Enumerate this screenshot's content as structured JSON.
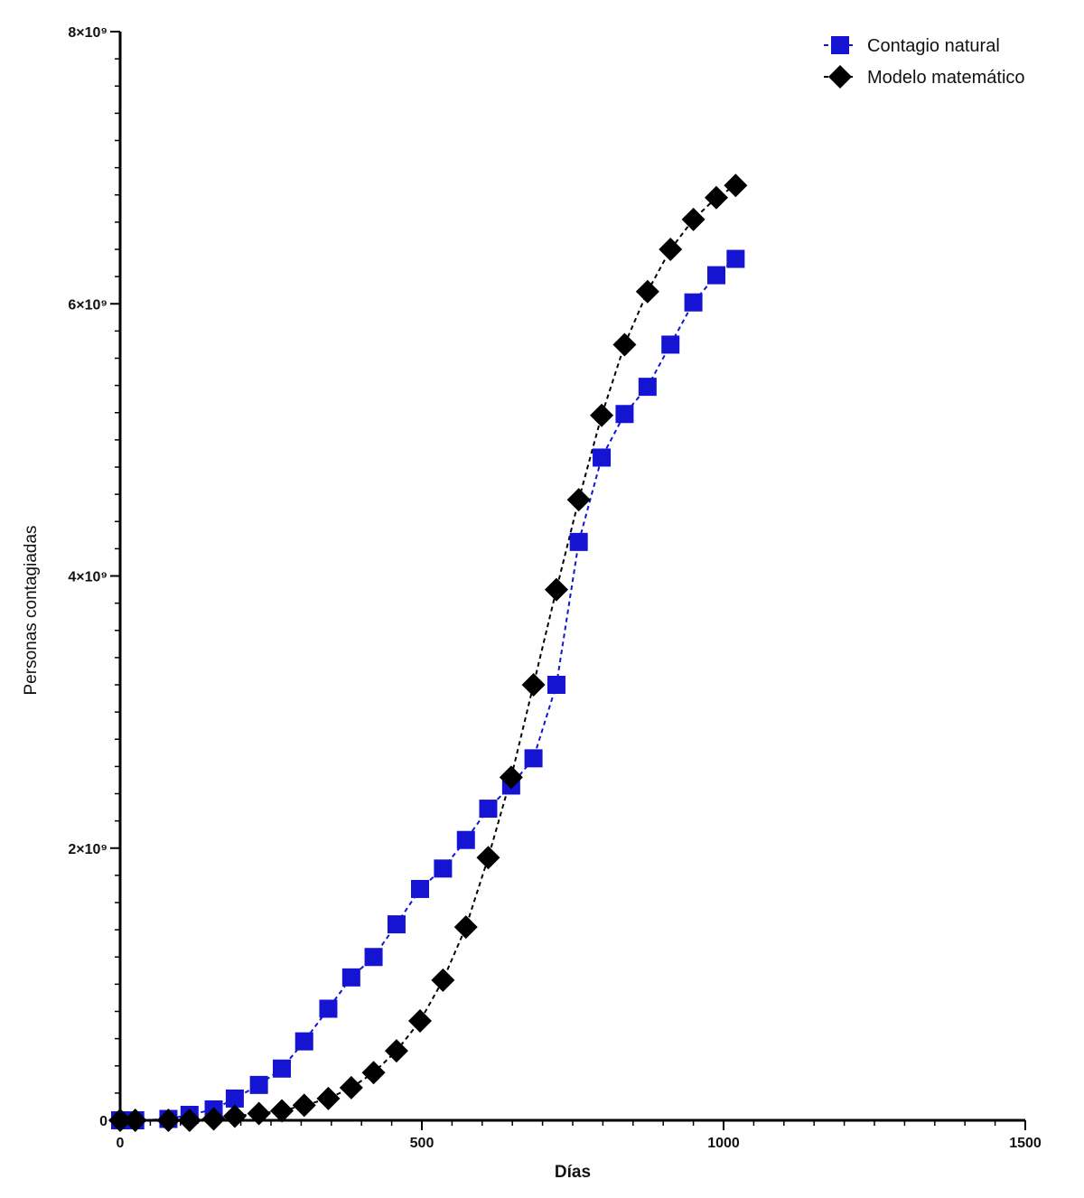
{
  "chart_data": {
    "type": "line",
    "title": "",
    "xlabel": "Días",
    "ylabel": "Personas contagiadas",
    "xlim": [
      0,
      1500
    ],
    "ylim": [
      0,
      8000000000
    ],
    "x_ticks": [
      0,
      500,
      1000,
      1500
    ],
    "x_tick_labels": [
      "0",
      "500",
      "1000",
      "1500"
    ],
    "y_ticks": [
      0,
      2000000000,
      4000000000,
      6000000000,
      8000000000
    ],
    "y_tick_labels": [
      "0",
      "2×10⁹",
      "4×10⁹",
      "6×10⁹",
      "8×10⁹"
    ],
    "grid": false,
    "legend_position": "top-right",
    "series": [
      {
        "name": "Contagio natural",
        "marker": "square",
        "color": "#1414d2",
        "line_style": "dashed",
        "x": [
          0,
          25,
          80,
          115,
          155,
          190,
          230,
          268,
          305,
          345,
          383,
          420,
          458,
          497,
          535,
          573,
          610,
          648,
          685,
          723,
          760,
          798,
          836,
          874,
          912,
          950,
          988,
          1020
        ],
        "y": [
          0,
          0,
          10000000,
          40000000,
          80000000,
          160000000,
          260000000,
          380000000,
          580000000,
          820000000,
          1050000000,
          1200000000,
          1440000000,
          1700000000,
          1850000000,
          2060000000,
          2290000000,
          2460000000,
          2660000000,
          3200000000,
          4250000000,
          4870000000,
          5190000000,
          5390000000,
          5700000000,
          6010000000,
          6210000000,
          6330000000
        ]
      },
      {
        "name": "Modelo matemático",
        "marker": "diamond",
        "color": "#000000",
        "line_style": "dashed",
        "x": [
          0,
          25,
          80,
          115,
          155,
          190,
          230,
          268,
          305,
          345,
          383,
          420,
          458,
          497,
          535,
          573,
          610,
          648,
          685,
          723,
          760,
          798,
          836,
          874,
          912,
          950,
          988,
          1020
        ],
        "y": [
          0,
          0,
          0,
          0,
          10000000,
          30000000,
          50000000,
          70000000,
          110000000,
          160000000,
          240000000,
          350000000,
          510000000,
          730000000,
          1030000000,
          1420000000,
          1930000000,
          2520000000,
          3200000000,
          3900000000,
          4560000000,
          5180000000,
          5700000000,
          6090000000,
          6400000000,
          6620000000,
          6780000000,
          6870000000
        ]
      }
    ]
  }
}
